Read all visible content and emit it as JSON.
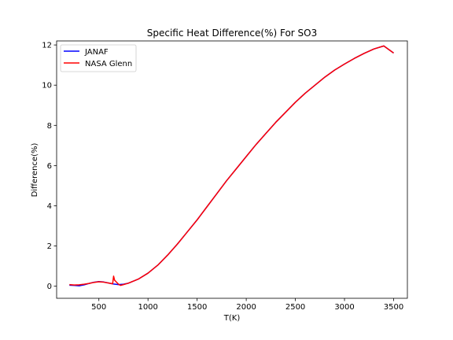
{
  "chart_data": {
    "type": "line",
    "title": "Specific Heat Difference(%) For SO3",
    "xlabel": "T(K)",
    "ylabel": "Difference(%)",
    "xlim": [
      70,
      3640
    ],
    "ylim": [
      -0.6,
      12.2
    ],
    "xticks": [
      500,
      1000,
      1500,
      2000,
      2500,
      3000,
      3500
    ],
    "yticks": [
      0,
      2,
      4,
      6,
      8,
      10,
      12
    ],
    "grid": false,
    "legend": "top-left",
    "series": [
      {
        "name": "JANAF",
        "color": "#0000ff",
        "x": [
          200,
          250,
          300,
          350,
          400,
          450,
          500,
          550,
          600,
          650,
          700,
          750,
          800,
          900,
          1000,
          1100,
          1200,
          1300,
          1400,
          1500,
          1600,
          1700,
          1800,
          1900,
          2000,
          2100,
          2200,
          2300,
          2400,
          2500,
          2600,
          2700,
          2800,
          2900,
          3000,
          3100,
          3200,
          3300,
          3400,
          3500
        ],
        "y": [
          0.05,
          0.04,
          0.02,
          0.07,
          0.14,
          0.2,
          0.23,
          0.21,
          0.16,
          0.11,
          0.08,
          0.1,
          0.15,
          0.35,
          0.65,
          1.05,
          1.55,
          2.1,
          2.7,
          3.3,
          3.95,
          4.6,
          5.25,
          5.85,
          6.45,
          7.05,
          7.6,
          8.15,
          8.65,
          9.15,
          9.6,
          10.0,
          10.4,
          10.75,
          11.05,
          11.33,
          11.58,
          11.8,
          11.95,
          11.6
        ]
      },
      {
        "name": "NASA Glenn",
        "color": "#ff0000",
        "x": [
          200,
          250,
          300,
          350,
          400,
          450,
          500,
          550,
          600,
          640,
          650,
          660,
          700,
          720,
          750,
          800,
          900,
          1000,
          1100,
          1200,
          1300,
          1400,
          1500,
          1600,
          1700,
          1800,
          1900,
          2000,
          2100,
          2200,
          2300,
          2400,
          2500,
          2600,
          2700,
          2800,
          2900,
          3000,
          3100,
          3200,
          3300,
          3400,
          3500
        ],
        "y": [
          0.08,
          0.06,
          0.07,
          0.1,
          0.14,
          0.19,
          0.22,
          0.2,
          0.16,
          0.12,
          0.5,
          0.3,
          0.1,
          0.04,
          0.08,
          0.15,
          0.35,
          0.65,
          1.05,
          1.55,
          2.1,
          2.7,
          3.3,
          3.95,
          4.6,
          5.25,
          5.85,
          6.45,
          7.05,
          7.6,
          8.15,
          8.65,
          9.15,
          9.6,
          10.0,
          10.4,
          10.75,
          11.05,
          11.33,
          11.58,
          11.8,
          11.95,
          11.6
        ]
      }
    ]
  }
}
